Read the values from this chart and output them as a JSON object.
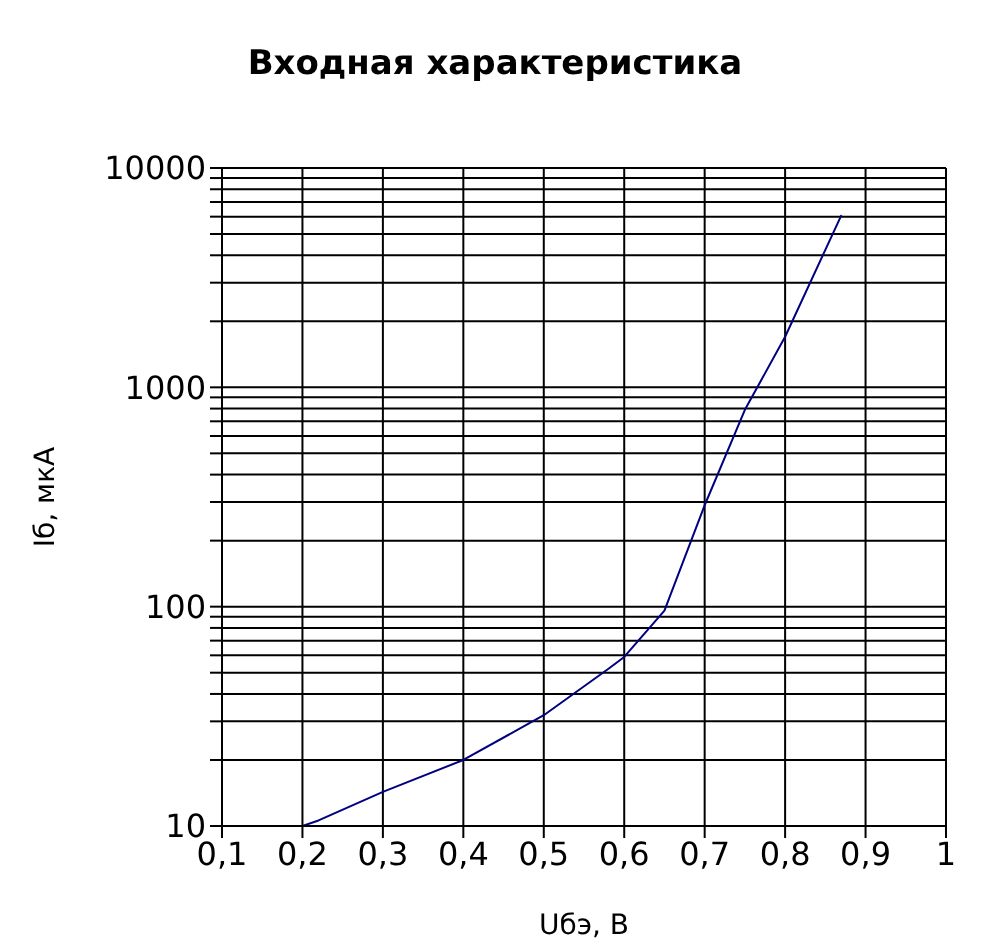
{
  "chart_data": {
    "type": "line",
    "title": "Входная характеристика",
    "xlabel": "Uбэ, В",
    "ylabel": "Iб, мкА",
    "x": [
      0.2,
      0.22,
      0.3,
      0.4,
      0.5,
      0.58,
      0.6,
      0.65,
      0.7,
      0.75,
      0.8,
      0.87
    ],
    "series": [
      {
        "color": "#000080",
        "values": [
          10,
          10.6,
          14.3,
          20,
          32,
          52,
          59,
          96,
          290,
          790,
          1700,
          6100
        ]
      }
    ],
    "log": "y",
    "grid": true,
    "marker": "none",
    "legend": false,
    "xlim": [
      0.1,
      1
    ],
    "xticks": [
      {
        "value": 0.1,
        "label": "0,1"
      },
      {
        "value": 0.2,
        "label": "0,2"
      },
      {
        "value": 0.3,
        "label": "0,3"
      },
      {
        "value": 0.4,
        "label": "0,4"
      },
      {
        "value": 0.5,
        "label": "0,5"
      },
      {
        "value": 0.6,
        "label": "0,6"
      },
      {
        "value": 0.7,
        "label": "0,7"
      },
      {
        "value": 0.8,
        "label": "0,8"
      },
      {
        "value": 0.9,
        "label": "0,9"
      },
      1
    ],
    "ylim": [
      10,
      10000
    ],
    "yticks": [
      10,
      {
        "value": 20,
        "label": null
      },
      {
        "value": 30,
        "label": null
      },
      {
        "value": 40,
        "label": null
      },
      {
        "value": 50,
        "label": null
      },
      {
        "value": 60,
        "label": null
      },
      {
        "value": 70,
        "label": null
      },
      {
        "value": 80,
        "label": null
      },
      {
        "value": 90,
        "label": null
      },
      100,
      {
        "value": 200,
        "label": null
      },
      {
        "value": 300,
        "label": null
      },
      {
        "value": 400,
        "label": null
      },
      {
        "value": 500,
        "label": null
      },
      {
        "value": 600,
        "label": null
      },
      {
        "value": 700,
        "label": null
      },
      {
        "value": 800,
        "label": null
      },
      {
        "value": 900,
        "label": null
      },
      1000,
      {
        "value": 2000,
        "label": null
      },
      {
        "value": 3000,
        "label": null
      },
      {
        "value": 4000,
        "label": null
      },
      {
        "value": 5000,
        "label": null
      },
      {
        "value": 6000,
        "label": null
      },
      {
        "value": 7000,
        "label": null
      },
      {
        "value": 8000,
        "label": null
      },
      {
        "value": 9000,
        "label": null
      },
      10000
    ]
  }
}
